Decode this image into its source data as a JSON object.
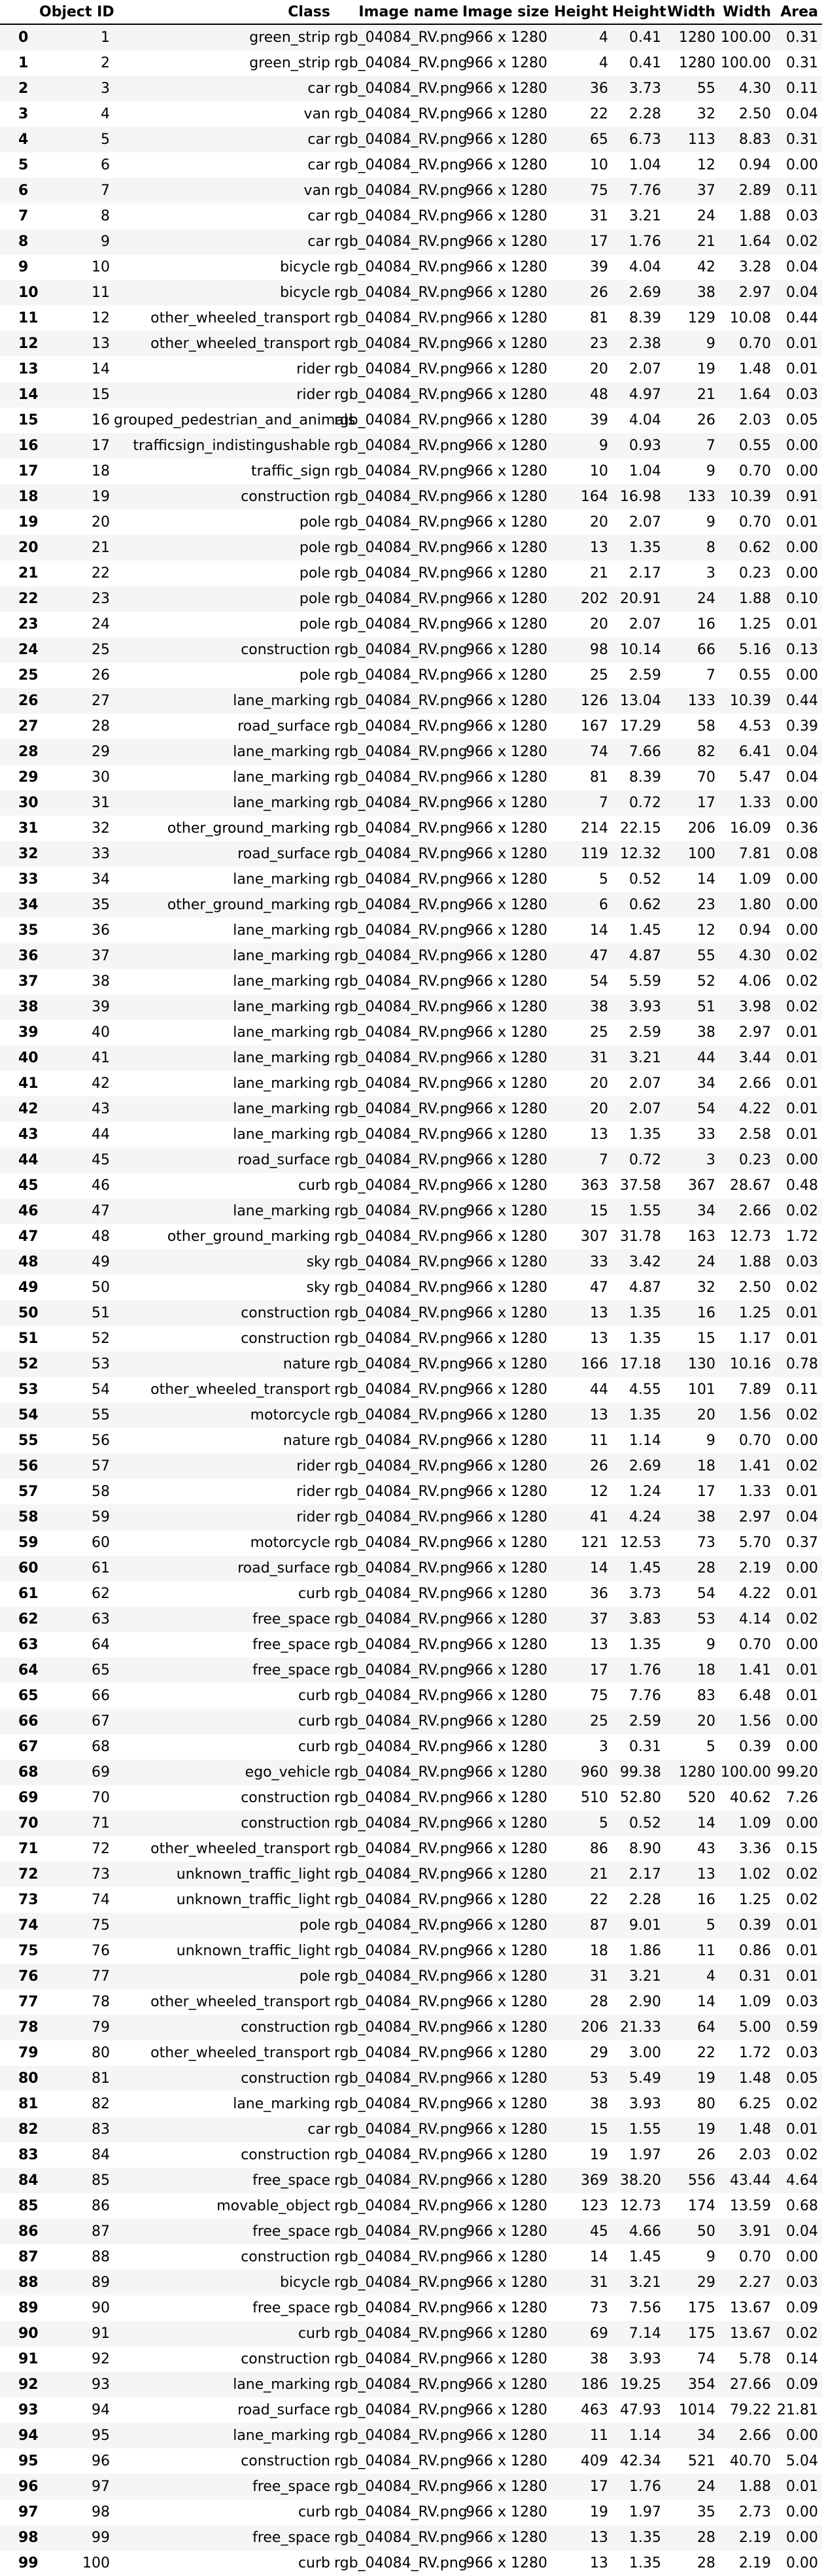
{
  "table": {
    "headers": {
      "object_id": "Object ID",
      "class": "Class",
      "image_name": "Image name",
      "image_size": "Image size",
      "height": "Height",
      "height_pct": "Height",
      "width": "Width",
      "width_pct": "Width",
      "area": "Area"
    },
    "rows": [
      [
        "0",
        "1",
        "green_strip",
        "rgb_04084_RV.png",
        "966 x 1280",
        "4",
        "0.41",
        "1280",
        "100.00",
        "0.31"
      ],
      [
        "1",
        "2",
        "green_strip",
        "rgb_04084_RV.png",
        "966 x 1280",
        "4",
        "0.41",
        "1280",
        "100.00",
        "0.31"
      ],
      [
        "2",
        "3",
        "car",
        "rgb_04084_RV.png",
        "966 x 1280",
        "36",
        "3.73",
        "55",
        "4.30",
        "0.11"
      ],
      [
        "3",
        "4",
        "van",
        "rgb_04084_RV.png",
        "966 x 1280",
        "22",
        "2.28",
        "32",
        "2.50",
        "0.04"
      ],
      [
        "4",
        "5",
        "car",
        "rgb_04084_RV.png",
        "966 x 1280",
        "65",
        "6.73",
        "113",
        "8.83",
        "0.31"
      ],
      [
        "5",
        "6",
        "car",
        "rgb_04084_RV.png",
        "966 x 1280",
        "10",
        "1.04",
        "12",
        "0.94",
        "0.00"
      ],
      [
        "6",
        "7",
        "van",
        "rgb_04084_RV.png",
        "966 x 1280",
        "75",
        "7.76",
        "37",
        "2.89",
        "0.11"
      ],
      [
        "7",
        "8",
        "car",
        "rgb_04084_RV.png",
        "966 x 1280",
        "31",
        "3.21",
        "24",
        "1.88",
        "0.03"
      ],
      [
        "8",
        "9",
        "car",
        "rgb_04084_RV.png",
        "966 x 1280",
        "17",
        "1.76",
        "21",
        "1.64",
        "0.02"
      ],
      [
        "9",
        "10",
        "bicycle",
        "rgb_04084_RV.png",
        "966 x 1280",
        "39",
        "4.04",
        "42",
        "3.28",
        "0.04"
      ],
      [
        "10",
        "11",
        "bicycle",
        "rgb_04084_RV.png",
        "966 x 1280",
        "26",
        "2.69",
        "38",
        "2.97",
        "0.04"
      ],
      [
        "11",
        "12",
        "other_wheeled_transport",
        "rgb_04084_RV.png",
        "966 x 1280",
        "81",
        "8.39",
        "129",
        "10.08",
        "0.44"
      ],
      [
        "12",
        "13",
        "other_wheeled_transport",
        "rgb_04084_RV.png",
        "966 x 1280",
        "23",
        "2.38",
        "9",
        "0.70",
        "0.01"
      ],
      [
        "13",
        "14",
        "rider",
        "rgb_04084_RV.png",
        "966 x 1280",
        "20",
        "2.07",
        "19",
        "1.48",
        "0.01"
      ],
      [
        "14",
        "15",
        "rider",
        "rgb_04084_RV.png",
        "966 x 1280",
        "48",
        "4.97",
        "21",
        "1.64",
        "0.03"
      ],
      [
        "15",
        "16",
        "grouped_pedestrian_and_animals",
        "rgb_04084_RV.png",
        "966 x 1280",
        "39",
        "4.04",
        "26",
        "2.03",
        "0.05"
      ],
      [
        "16",
        "17",
        "trafficsign_indistingushable",
        "rgb_04084_RV.png",
        "966 x 1280",
        "9",
        "0.93",
        "7",
        "0.55",
        "0.00"
      ],
      [
        "17",
        "18",
        "traffic_sign",
        "rgb_04084_RV.png",
        "966 x 1280",
        "10",
        "1.04",
        "9",
        "0.70",
        "0.00"
      ],
      [
        "18",
        "19",
        "construction",
        "rgb_04084_RV.png",
        "966 x 1280",
        "164",
        "16.98",
        "133",
        "10.39",
        "0.91"
      ],
      [
        "19",
        "20",
        "pole",
        "rgb_04084_RV.png",
        "966 x 1280",
        "20",
        "2.07",
        "9",
        "0.70",
        "0.01"
      ],
      [
        "20",
        "21",
        "pole",
        "rgb_04084_RV.png",
        "966 x 1280",
        "13",
        "1.35",
        "8",
        "0.62",
        "0.00"
      ],
      [
        "21",
        "22",
        "pole",
        "rgb_04084_RV.png",
        "966 x 1280",
        "21",
        "2.17",
        "3",
        "0.23",
        "0.00"
      ],
      [
        "22",
        "23",
        "pole",
        "rgb_04084_RV.png",
        "966 x 1280",
        "202",
        "20.91",
        "24",
        "1.88",
        "0.10"
      ],
      [
        "23",
        "24",
        "pole",
        "rgb_04084_RV.png",
        "966 x 1280",
        "20",
        "2.07",
        "16",
        "1.25",
        "0.01"
      ],
      [
        "24",
        "25",
        "construction",
        "rgb_04084_RV.png",
        "966 x 1280",
        "98",
        "10.14",
        "66",
        "5.16",
        "0.13"
      ],
      [
        "25",
        "26",
        "pole",
        "rgb_04084_RV.png",
        "966 x 1280",
        "25",
        "2.59",
        "7",
        "0.55",
        "0.00"
      ],
      [
        "26",
        "27",
        "lane_marking",
        "rgb_04084_RV.png",
        "966 x 1280",
        "126",
        "13.04",
        "133",
        "10.39",
        "0.44"
      ],
      [
        "27",
        "28",
        "road_surface",
        "rgb_04084_RV.png",
        "966 x 1280",
        "167",
        "17.29",
        "58",
        "4.53",
        "0.39"
      ],
      [
        "28",
        "29",
        "lane_marking",
        "rgb_04084_RV.png",
        "966 x 1280",
        "74",
        "7.66",
        "82",
        "6.41",
        "0.04"
      ],
      [
        "29",
        "30",
        "lane_marking",
        "rgb_04084_RV.png",
        "966 x 1280",
        "81",
        "8.39",
        "70",
        "5.47",
        "0.04"
      ],
      [
        "30",
        "31",
        "lane_marking",
        "rgb_04084_RV.png",
        "966 x 1280",
        "7",
        "0.72",
        "17",
        "1.33",
        "0.00"
      ],
      [
        "31",
        "32",
        "other_ground_marking",
        "rgb_04084_RV.png",
        "966 x 1280",
        "214",
        "22.15",
        "206",
        "16.09",
        "0.36"
      ],
      [
        "32",
        "33",
        "road_surface",
        "rgb_04084_RV.png",
        "966 x 1280",
        "119",
        "12.32",
        "100",
        "7.81",
        "0.08"
      ],
      [
        "33",
        "34",
        "lane_marking",
        "rgb_04084_RV.png",
        "966 x 1280",
        "5",
        "0.52",
        "14",
        "1.09",
        "0.00"
      ],
      [
        "34",
        "35",
        "other_ground_marking",
        "rgb_04084_RV.png",
        "966 x 1280",
        "6",
        "0.62",
        "23",
        "1.80",
        "0.00"
      ],
      [
        "35",
        "36",
        "lane_marking",
        "rgb_04084_RV.png",
        "966 x 1280",
        "14",
        "1.45",
        "12",
        "0.94",
        "0.00"
      ],
      [
        "36",
        "37",
        "lane_marking",
        "rgb_04084_RV.png",
        "966 x 1280",
        "47",
        "4.87",
        "55",
        "4.30",
        "0.02"
      ],
      [
        "37",
        "38",
        "lane_marking",
        "rgb_04084_RV.png",
        "966 x 1280",
        "54",
        "5.59",
        "52",
        "4.06",
        "0.02"
      ],
      [
        "38",
        "39",
        "lane_marking",
        "rgb_04084_RV.png",
        "966 x 1280",
        "38",
        "3.93",
        "51",
        "3.98",
        "0.02"
      ],
      [
        "39",
        "40",
        "lane_marking",
        "rgb_04084_RV.png",
        "966 x 1280",
        "25",
        "2.59",
        "38",
        "2.97",
        "0.01"
      ],
      [
        "40",
        "41",
        "lane_marking",
        "rgb_04084_RV.png",
        "966 x 1280",
        "31",
        "3.21",
        "44",
        "3.44",
        "0.01"
      ],
      [
        "41",
        "42",
        "lane_marking",
        "rgb_04084_RV.png",
        "966 x 1280",
        "20",
        "2.07",
        "34",
        "2.66",
        "0.01"
      ],
      [
        "42",
        "43",
        "lane_marking",
        "rgb_04084_RV.png",
        "966 x 1280",
        "20",
        "2.07",
        "54",
        "4.22",
        "0.01"
      ],
      [
        "43",
        "44",
        "lane_marking",
        "rgb_04084_RV.png",
        "966 x 1280",
        "13",
        "1.35",
        "33",
        "2.58",
        "0.01"
      ],
      [
        "44",
        "45",
        "road_surface",
        "rgb_04084_RV.png",
        "966 x 1280",
        "7",
        "0.72",
        "3",
        "0.23",
        "0.00"
      ],
      [
        "45",
        "46",
        "curb",
        "rgb_04084_RV.png",
        "966 x 1280",
        "363",
        "37.58",
        "367",
        "28.67",
        "0.48"
      ],
      [
        "46",
        "47",
        "lane_marking",
        "rgb_04084_RV.png",
        "966 x 1280",
        "15",
        "1.55",
        "34",
        "2.66",
        "0.02"
      ],
      [
        "47",
        "48",
        "other_ground_marking",
        "rgb_04084_RV.png",
        "966 x 1280",
        "307",
        "31.78",
        "163",
        "12.73",
        "1.72"
      ],
      [
        "48",
        "49",
        "sky",
        "rgb_04084_RV.png",
        "966 x 1280",
        "33",
        "3.42",
        "24",
        "1.88",
        "0.03"
      ],
      [
        "49",
        "50",
        "sky",
        "rgb_04084_RV.png",
        "966 x 1280",
        "47",
        "4.87",
        "32",
        "2.50",
        "0.02"
      ],
      [
        "50",
        "51",
        "construction",
        "rgb_04084_RV.png",
        "966 x 1280",
        "13",
        "1.35",
        "16",
        "1.25",
        "0.01"
      ],
      [
        "51",
        "52",
        "construction",
        "rgb_04084_RV.png",
        "966 x 1280",
        "13",
        "1.35",
        "15",
        "1.17",
        "0.01"
      ],
      [
        "52",
        "53",
        "nature",
        "rgb_04084_RV.png",
        "966 x 1280",
        "166",
        "17.18",
        "130",
        "10.16",
        "0.78"
      ],
      [
        "53",
        "54",
        "other_wheeled_transport",
        "rgb_04084_RV.png",
        "966 x 1280",
        "44",
        "4.55",
        "101",
        "7.89",
        "0.11"
      ],
      [
        "54",
        "55",
        "motorcycle",
        "rgb_04084_RV.png",
        "966 x 1280",
        "13",
        "1.35",
        "20",
        "1.56",
        "0.02"
      ],
      [
        "55",
        "56",
        "nature",
        "rgb_04084_RV.png",
        "966 x 1280",
        "11",
        "1.14",
        "9",
        "0.70",
        "0.00"
      ],
      [
        "56",
        "57",
        "rider",
        "rgb_04084_RV.png",
        "966 x 1280",
        "26",
        "2.69",
        "18",
        "1.41",
        "0.02"
      ],
      [
        "57",
        "58",
        "rider",
        "rgb_04084_RV.png",
        "966 x 1280",
        "12",
        "1.24",
        "17",
        "1.33",
        "0.01"
      ],
      [
        "58",
        "59",
        "rider",
        "rgb_04084_RV.png",
        "966 x 1280",
        "41",
        "4.24",
        "38",
        "2.97",
        "0.04"
      ],
      [
        "59",
        "60",
        "motorcycle",
        "rgb_04084_RV.png",
        "966 x 1280",
        "121",
        "12.53",
        "73",
        "5.70",
        "0.37"
      ],
      [
        "60",
        "61",
        "road_surface",
        "rgb_04084_RV.png",
        "966 x 1280",
        "14",
        "1.45",
        "28",
        "2.19",
        "0.00"
      ],
      [
        "61",
        "62",
        "curb",
        "rgb_04084_RV.png",
        "966 x 1280",
        "36",
        "3.73",
        "54",
        "4.22",
        "0.01"
      ],
      [
        "62",
        "63",
        "free_space",
        "rgb_04084_RV.png",
        "966 x 1280",
        "37",
        "3.83",
        "53",
        "4.14",
        "0.02"
      ],
      [
        "63",
        "64",
        "free_space",
        "rgb_04084_RV.png",
        "966 x 1280",
        "13",
        "1.35",
        "9",
        "0.70",
        "0.00"
      ],
      [
        "64",
        "65",
        "free_space",
        "rgb_04084_RV.png",
        "966 x 1280",
        "17",
        "1.76",
        "18",
        "1.41",
        "0.01"
      ],
      [
        "65",
        "66",
        "curb",
        "rgb_04084_RV.png",
        "966 x 1280",
        "75",
        "7.76",
        "83",
        "6.48",
        "0.01"
      ],
      [
        "66",
        "67",
        "curb",
        "rgb_04084_RV.png",
        "966 x 1280",
        "25",
        "2.59",
        "20",
        "1.56",
        "0.00"
      ],
      [
        "67",
        "68",
        "curb",
        "rgb_04084_RV.png",
        "966 x 1280",
        "3",
        "0.31",
        "5",
        "0.39",
        "0.00"
      ],
      [
        "68",
        "69",
        "ego_vehicle",
        "rgb_04084_RV.png",
        "966 x 1280",
        "960",
        "99.38",
        "1280",
        "100.00",
        "99.20"
      ],
      [
        "69",
        "70",
        "construction",
        "rgb_04084_RV.png",
        "966 x 1280",
        "510",
        "52.80",
        "520",
        "40.62",
        "7.26"
      ],
      [
        "70",
        "71",
        "construction",
        "rgb_04084_RV.png",
        "966 x 1280",
        "5",
        "0.52",
        "14",
        "1.09",
        "0.00"
      ],
      [
        "71",
        "72",
        "other_wheeled_transport",
        "rgb_04084_RV.png",
        "966 x 1280",
        "86",
        "8.90",
        "43",
        "3.36",
        "0.15"
      ],
      [
        "72",
        "73",
        "unknown_traffic_light",
        "rgb_04084_RV.png",
        "966 x 1280",
        "21",
        "2.17",
        "13",
        "1.02",
        "0.02"
      ],
      [
        "73",
        "74",
        "unknown_traffic_light",
        "rgb_04084_RV.png",
        "966 x 1280",
        "22",
        "2.28",
        "16",
        "1.25",
        "0.02"
      ],
      [
        "74",
        "75",
        "pole",
        "rgb_04084_RV.png",
        "966 x 1280",
        "87",
        "9.01",
        "5",
        "0.39",
        "0.01"
      ],
      [
        "75",
        "76",
        "unknown_traffic_light",
        "rgb_04084_RV.png",
        "966 x 1280",
        "18",
        "1.86",
        "11",
        "0.86",
        "0.01"
      ],
      [
        "76",
        "77",
        "pole",
        "rgb_04084_RV.png",
        "966 x 1280",
        "31",
        "3.21",
        "4",
        "0.31",
        "0.01"
      ],
      [
        "77",
        "78",
        "other_wheeled_transport",
        "rgb_04084_RV.png",
        "966 x 1280",
        "28",
        "2.90",
        "14",
        "1.09",
        "0.03"
      ],
      [
        "78",
        "79",
        "construction",
        "rgb_04084_RV.png",
        "966 x 1280",
        "206",
        "21.33",
        "64",
        "5.00",
        "0.59"
      ],
      [
        "79",
        "80",
        "other_wheeled_transport",
        "rgb_04084_RV.png",
        "966 x 1280",
        "29",
        "3.00",
        "22",
        "1.72",
        "0.03"
      ],
      [
        "80",
        "81",
        "construction",
        "rgb_04084_RV.png",
        "966 x 1280",
        "53",
        "5.49",
        "19",
        "1.48",
        "0.05"
      ],
      [
        "81",
        "82",
        "lane_marking",
        "rgb_04084_RV.png",
        "966 x 1280",
        "38",
        "3.93",
        "80",
        "6.25",
        "0.02"
      ],
      [
        "82",
        "83",
        "car",
        "rgb_04084_RV.png",
        "966 x 1280",
        "15",
        "1.55",
        "19",
        "1.48",
        "0.01"
      ],
      [
        "83",
        "84",
        "construction",
        "rgb_04084_RV.png",
        "966 x 1280",
        "19",
        "1.97",
        "26",
        "2.03",
        "0.02"
      ],
      [
        "84",
        "85",
        "free_space",
        "rgb_04084_RV.png",
        "966 x 1280",
        "369",
        "38.20",
        "556",
        "43.44",
        "4.64"
      ],
      [
        "85",
        "86",
        "movable_object",
        "rgb_04084_RV.png",
        "966 x 1280",
        "123",
        "12.73",
        "174",
        "13.59",
        "0.68"
      ],
      [
        "86",
        "87",
        "free_space",
        "rgb_04084_RV.png",
        "966 x 1280",
        "45",
        "4.66",
        "50",
        "3.91",
        "0.04"
      ],
      [
        "87",
        "88",
        "construction",
        "rgb_04084_RV.png",
        "966 x 1280",
        "14",
        "1.45",
        "9",
        "0.70",
        "0.00"
      ],
      [
        "88",
        "89",
        "bicycle",
        "rgb_04084_RV.png",
        "966 x 1280",
        "31",
        "3.21",
        "29",
        "2.27",
        "0.03"
      ],
      [
        "89",
        "90",
        "free_space",
        "rgb_04084_RV.png",
        "966 x 1280",
        "73",
        "7.56",
        "175",
        "13.67",
        "0.09"
      ],
      [
        "90",
        "91",
        "curb",
        "rgb_04084_RV.png",
        "966 x 1280",
        "69",
        "7.14",
        "175",
        "13.67",
        "0.02"
      ],
      [
        "91",
        "92",
        "construction",
        "rgb_04084_RV.png",
        "966 x 1280",
        "38",
        "3.93",
        "74",
        "5.78",
        "0.14"
      ],
      [
        "92",
        "93",
        "lane_marking",
        "rgb_04084_RV.png",
        "966 x 1280",
        "186",
        "19.25",
        "354",
        "27.66",
        "0.09"
      ],
      [
        "93",
        "94",
        "road_surface",
        "rgb_04084_RV.png",
        "966 x 1280",
        "463",
        "47.93",
        "1014",
        "79.22",
        "21.81"
      ],
      [
        "94",
        "95",
        "lane_marking",
        "rgb_04084_RV.png",
        "966 x 1280",
        "11",
        "1.14",
        "34",
        "2.66",
        "0.00"
      ],
      [
        "95",
        "96",
        "construction",
        "rgb_04084_RV.png",
        "966 x 1280",
        "409",
        "42.34",
        "521",
        "40.70",
        "5.04"
      ],
      [
        "96",
        "97",
        "free_space",
        "rgb_04084_RV.png",
        "966 x 1280",
        "17",
        "1.76",
        "24",
        "1.88",
        "0.01"
      ],
      [
        "97",
        "98",
        "curb",
        "rgb_04084_RV.png",
        "966 x 1280",
        "19",
        "1.97",
        "35",
        "2.73",
        "0.00"
      ],
      [
        "98",
        "99",
        "free_space",
        "rgb_04084_RV.png",
        "966 x 1280",
        "13",
        "1.35",
        "28",
        "2.19",
        "0.00"
      ],
      [
        "99",
        "100",
        "curb",
        "rgb_04084_RV.png",
        "966 x 1280",
        "13",
        "1.35",
        "28",
        "2.19",
        "0.00"
      ]
    ]
  }
}
